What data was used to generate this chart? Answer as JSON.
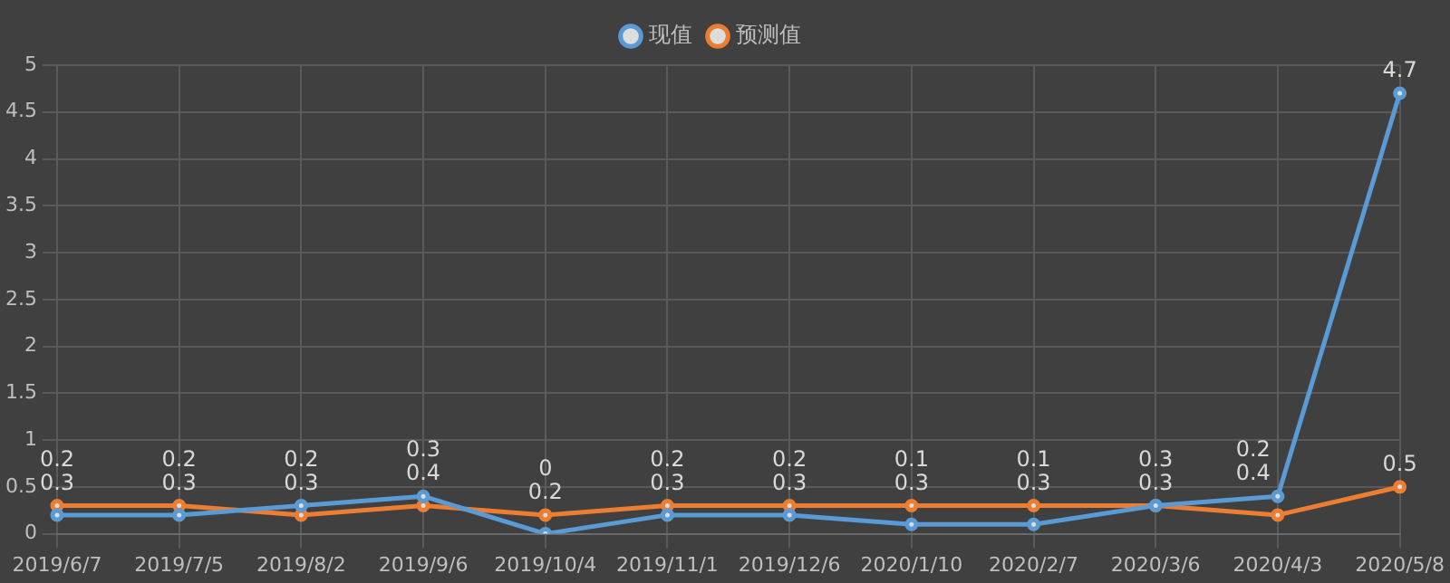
{
  "chart_data": {
    "type": "line",
    "categories": [
      "2019/6/7",
      "2019/7/5",
      "2019/8/2",
      "2019/9/6",
      "2019/10/4",
      "2019/11/1",
      "2019/12/6",
      "2020/1/10",
      "2020/2/7",
      "2020/3/6",
      "2020/4/3",
      "2020/5/8"
    ],
    "series": [
      {
        "name": "现值",
        "color": "#5b9bd5",
        "values": [
          0.2,
          0.2,
          0.3,
          0.4,
          0,
          0.2,
          0.2,
          0.1,
          0.1,
          0.3,
          0.4,
          4.7
        ]
      },
      {
        "name": "预测值",
        "color": "#ed7d31",
        "values": [
          0.3,
          0.3,
          0.2,
          0.3,
          0.2,
          0.3,
          0.3,
          0.3,
          0.3,
          0.3,
          0.2,
          0.5
        ]
      }
    ],
    "ylim": [
      0,
      5
    ],
    "yticks": [
      0,
      0.5,
      1,
      1.5,
      2,
      2.5,
      3,
      3.5,
      4,
      4.5,
      5
    ],
    "grid": true,
    "legend": "top",
    "marker": "circle",
    "line_style": "solid",
    "data_labels": true
  }
}
